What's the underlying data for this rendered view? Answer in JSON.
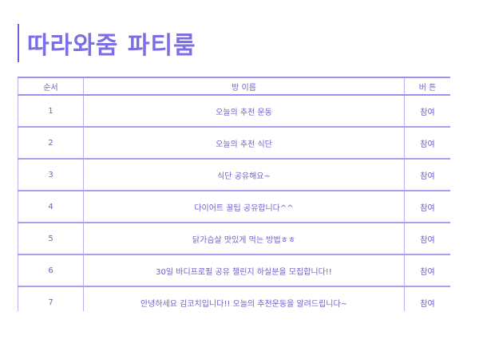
{
  "title": "따라와줌 파티룸",
  "table": {
    "headers": {
      "no": "순서",
      "name": "방 이름",
      "button": "버 튼"
    },
    "rows": [
      {
        "no": "1",
        "name": "오늘의 추천 운동",
        "button": "참여"
      },
      {
        "no": "2",
        "name": "오늘의 추천 식단",
        "button": "참여"
      },
      {
        "no": "3",
        "name": "식단 공유해요~",
        "button": "참여"
      },
      {
        "no": "4",
        "name": "다이어트 꿀팁 공유합니다^^",
        "button": "참여"
      },
      {
        "no": "5",
        "name": "닭가슴살 맛있게 먹는 방법ㅎㅎ",
        "button": "참여"
      },
      {
        "no": "6",
        "name": "30일 바디프로필 공유 챌린지 하실분을 모집합니다!!",
        "button": "참여"
      },
      {
        "no": "7",
        "name": "안녕하세요 김코치입니다!! 오늘의 추천운동을 알려드립니다~",
        "button": "참여"
      }
    ]
  },
  "colors": {
    "accent": "#7c6fe6",
    "border": "#b9b2f2",
    "text": "#6c63c9"
  }
}
